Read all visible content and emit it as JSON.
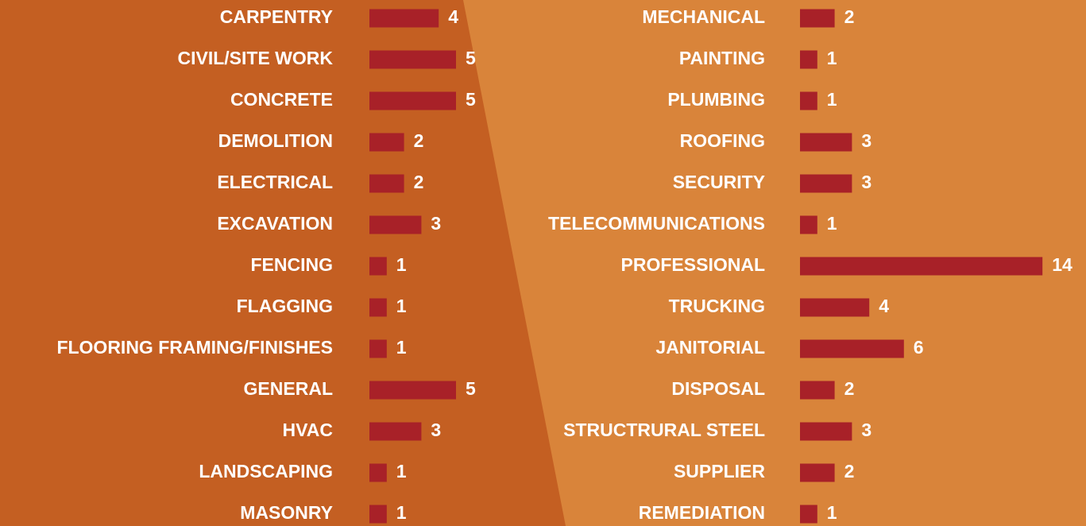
{
  "chart_data": [
    {
      "type": "bar",
      "color": "#a82128",
      "categories": [
        "CARPENTRY",
        "CIVIL/SITE WORK",
        "CONCRETE",
        "DEMOLITION",
        "ELECTRICAL",
        "EXCAVATION",
        "FENCING",
        "FLAGGING",
        "FLOORING FRAMING/FINISHES",
        "GENERAL",
        "HVAC",
        "LANDSCAPING",
        "MASONRY"
      ],
      "values": [
        4,
        5,
        5,
        2,
        2,
        3,
        1,
        1,
        1,
        5,
        3,
        1,
        1
      ]
    },
    {
      "type": "bar",
      "color": "#a82128",
      "categories": [
        "MECHANICAL",
        "PAINTING",
        "PLUMBING",
        "ROOFING",
        "SECURITY",
        "TELECOMMUNICATIONS",
        "PROFESSIONAL",
        "TRUCKING",
        "JANITORIAL",
        "DISPOSAL",
        "STRUCTRURAL STEEL",
        "SUPPLIER",
        "REMEDIATION"
      ],
      "values": [
        2,
        1,
        1,
        3,
        3,
        1,
        14,
        4,
        6,
        2,
        3,
        2,
        1
      ]
    }
  ]
}
